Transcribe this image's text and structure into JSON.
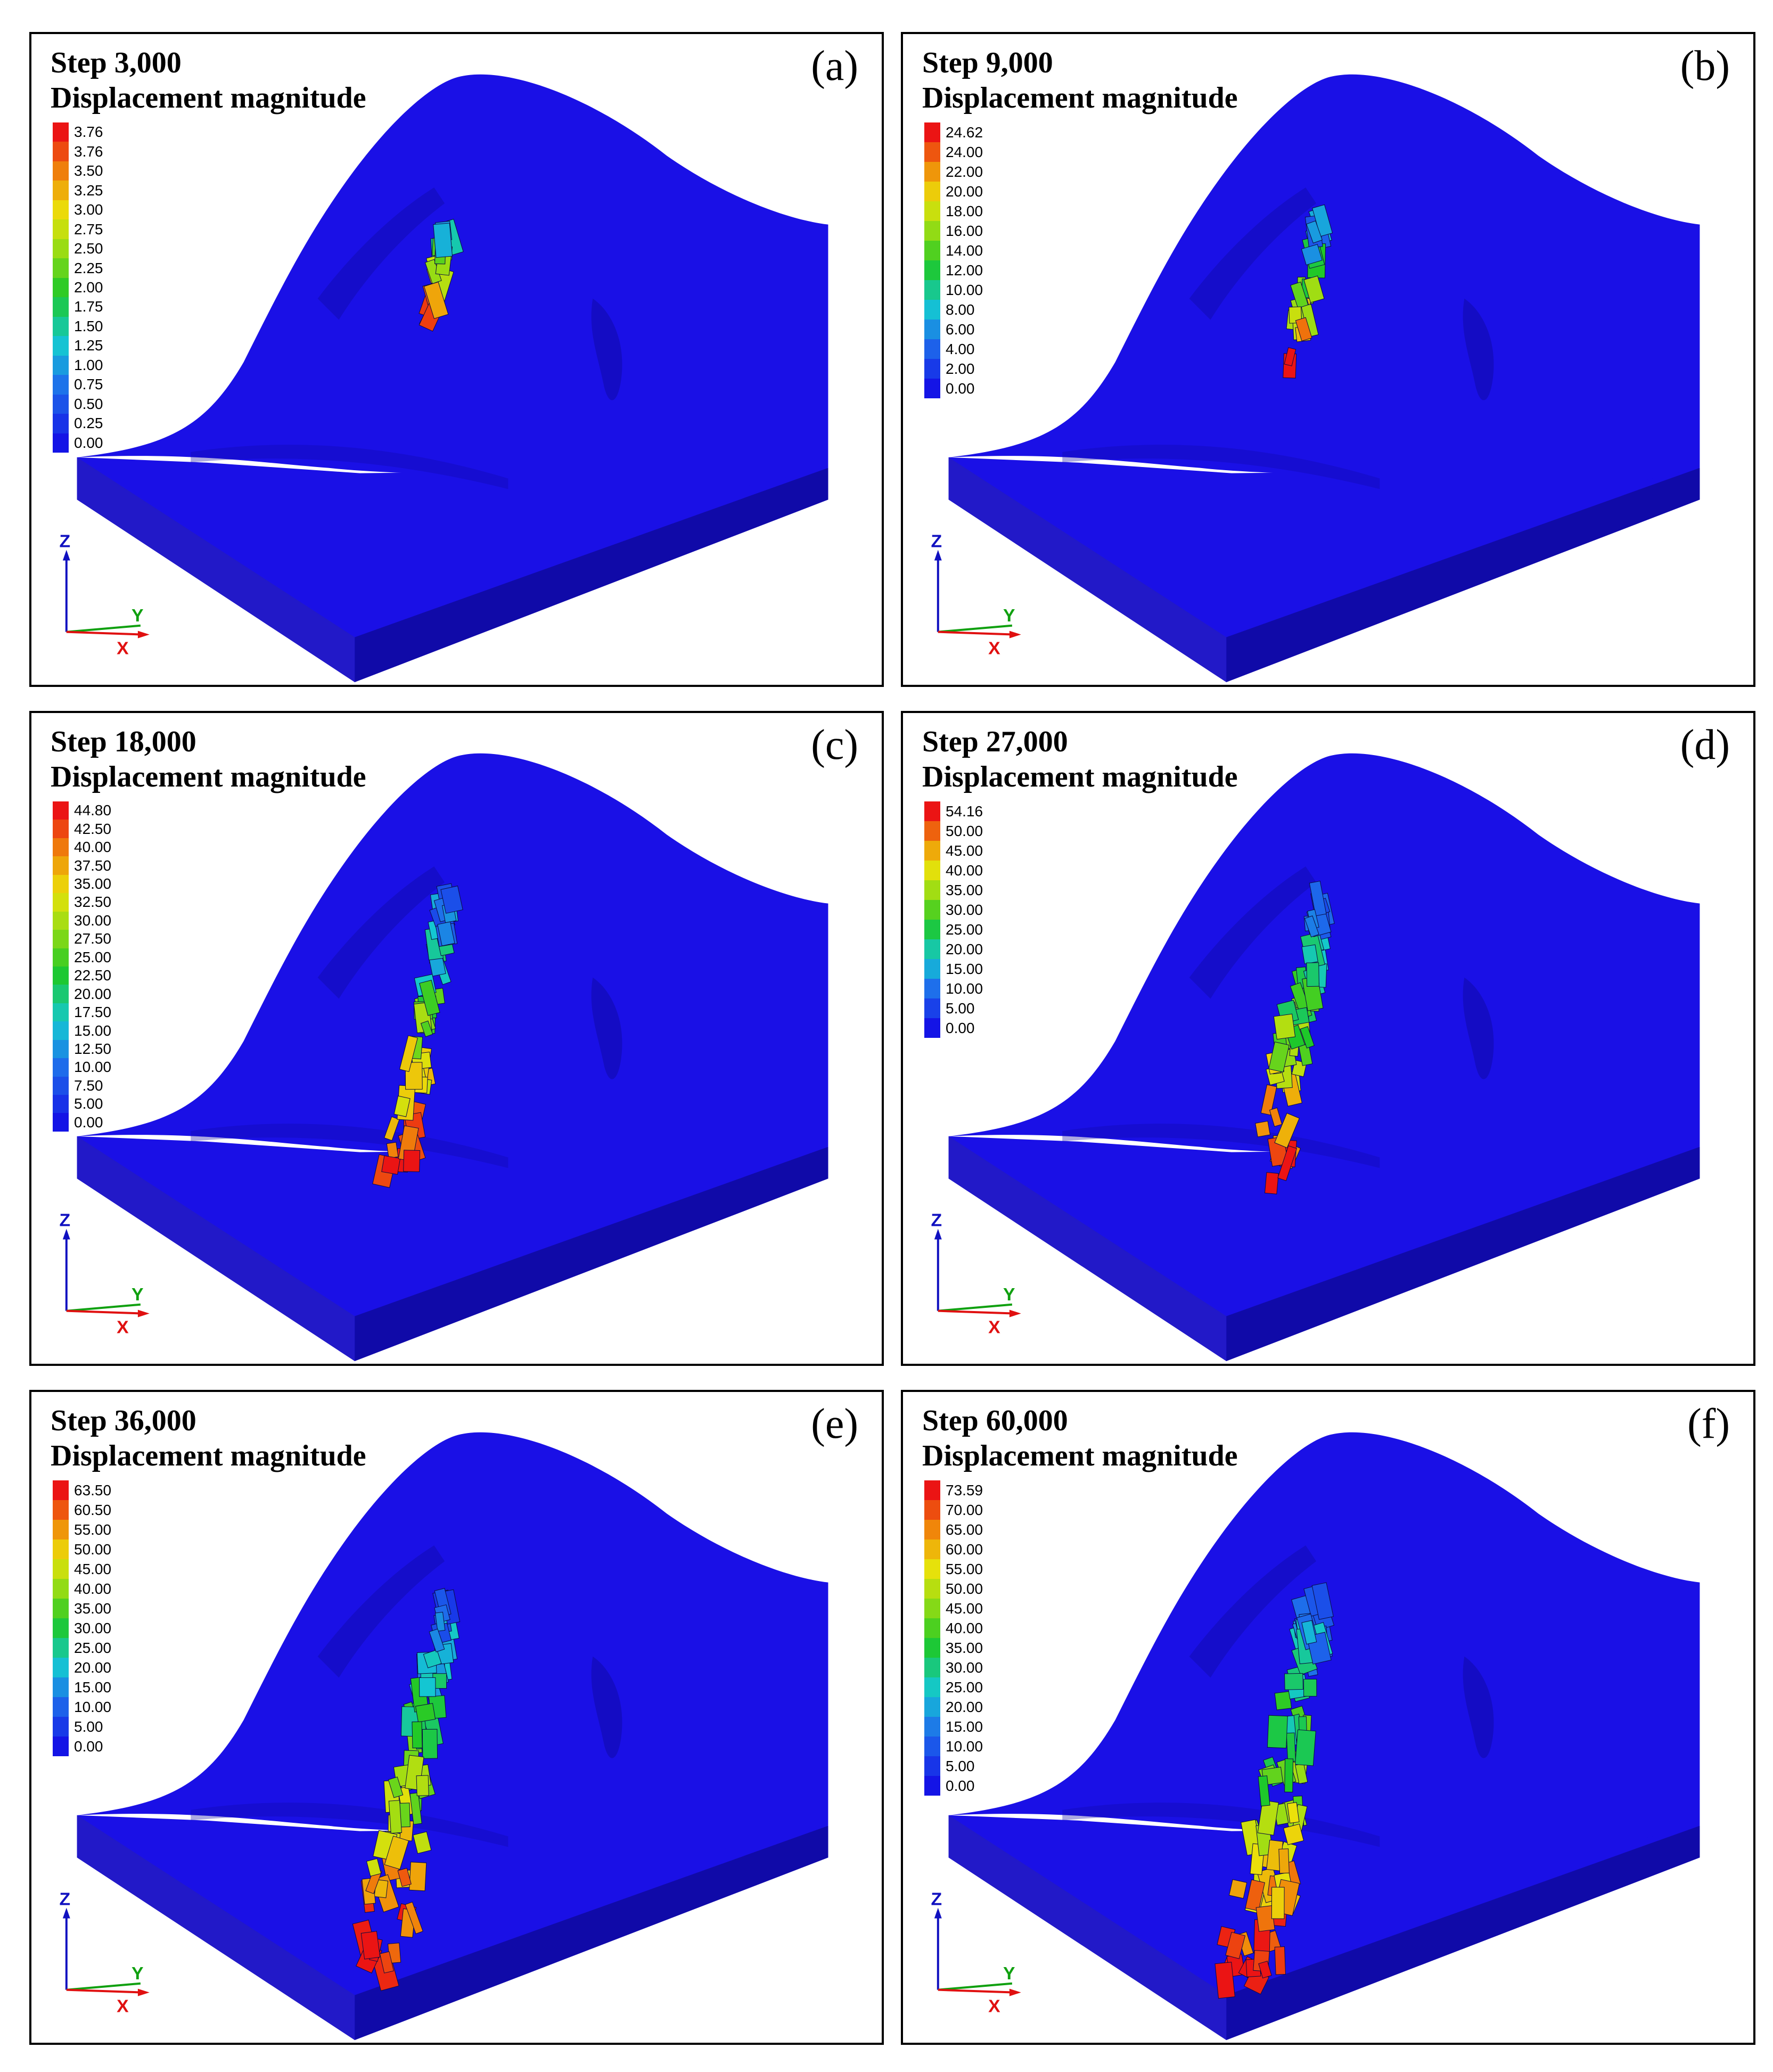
{
  "panels": [
    {
      "step": "Step 3,000",
      "subtitle": "Displacement magnitude",
      "letter": "(a)",
      "legend": [
        "3.76",
        "3.76",
        "3.50",
        "3.25",
        "3.00",
        "2.75",
        "2.50",
        "2.25",
        "2.00",
        "1.75",
        "1.50",
        "1.25",
        "1.00",
        "0.75",
        "0.50",
        "0.25",
        "0.00"
      ]
    },
    {
      "step": "Step 9,000",
      "subtitle": "Displacement magnitude",
      "letter": "(b)",
      "legend": [
        "24.62",
        "24.00",
        "22.00",
        "20.00",
        "18.00",
        "16.00",
        "14.00",
        "12.00",
        "10.00",
        "8.00",
        "6.00",
        "4.00",
        "2.00",
        "0.00"
      ]
    },
    {
      "step": "Step 18,000",
      "subtitle": "Displacement magnitude",
      "letter": "(c)",
      "legend": [
        "44.80",
        "42.50",
        "40.00",
        "37.50",
        "35.00",
        "32.50",
        "30.00",
        "27.50",
        "25.00",
        "22.50",
        "20.00",
        "17.50",
        "15.00",
        "12.50",
        "10.00",
        "7.50",
        "5.00",
        "0.00"
      ]
    },
    {
      "step": "Step 27,000",
      "subtitle": "Displacement magnitude",
      "letter": "(d)",
      "legend": [
        "54.16",
        "50.00",
        "45.00",
        "40.00",
        "35.00",
        "30.00",
        "25.00",
        "20.00",
        "15.00",
        "10.00",
        "5.00",
        "0.00"
      ]
    },
    {
      "step": "Step 36,000",
      "subtitle": "Displacement magnitude",
      "letter": "(e)",
      "legend": [
        "63.50",
        "60.50",
        "55.00",
        "50.00",
        "45.00",
        "40.00",
        "35.00",
        "30.00",
        "25.00",
        "20.00",
        "15.00",
        "10.00",
        "5.00",
        "0.00"
      ]
    },
    {
      "step": "Step 60,000",
      "subtitle": "Displacement magnitude",
      "letter": "(f)",
      "legend": [
        "73.59",
        "70.00",
        "65.00",
        "60.00",
        "55.00",
        "50.00",
        "45.00",
        "40.00",
        "35.00",
        "30.00",
        "25.00",
        "20.00",
        "15.00",
        "10.00",
        "5.00",
        "0.00"
      ]
    }
  ],
  "axes": {
    "z": "Z",
    "y": "Y",
    "x": "X"
  },
  "colors": {
    "terrain": "#1a10e6",
    "terrain_dark": "#100aa8",
    "terrain_shadow": "#2219c8",
    "axis_z": "#1010c0",
    "axis_y": "#10a010",
    "axis_x": "#e01010"
  }
}
